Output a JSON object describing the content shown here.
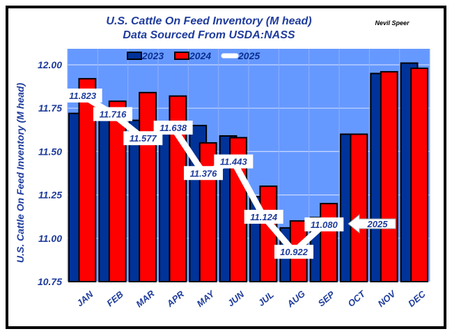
{
  "chart_data": {
    "type": "bar",
    "title": "U.S. Cattle On Feed Inventory (M head)",
    "subtitle": "Data Sourced From USDA:NASS",
    "author": "Nevil Speer",
    "xlabel": "",
    "ylabel": "U.S. Cattle On Feed Inventory (M head)",
    "ylim": [
      10.75,
      12.0
    ],
    "yticks": [
      "12.00",
      "11.75",
      "11.50",
      "11.25",
      "11.00",
      "10.75"
    ],
    "ytick_values": [
      12.0,
      11.75,
      11.5,
      11.25,
      11.0,
      10.75
    ],
    "grid": true,
    "legend_position": "top-center",
    "categories": [
      "JAN",
      "FEB",
      "MAR",
      "APR",
      "MAY",
      "JUN",
      "JUL",
      "AUG",
      "SEP",
      "OCT",
      "NOV",
      "DEC"
    ],
    "series": [
      {
        "name": "2023",
        "kind": "bar",
        "color": "#003399",
        "values": [
          11.72,
          11.72,
          11.68,
          11.64,
          11.65,
          11.59,
          11.24,
          11.06,
          11.12,
          11.6,
          11.95,
          12.01
        ]
      },
      {
        "name": "2024",
        "kind": "bar",
        "color": "#ff0000",
        "values": [
          11.92,
          11.79,
          11.84,
          11.82,
          11.55,
          11.58,
          11.3,
          11.1,
          11.2,
          11.6,
          11.96,
          11.98
        ]
      },
      {
        "name": "2025",
        "kind": "line",
        "color": "#ffffff",
        "values": [
          11.823,
          11.716,
          11.577,
          11.638,
          11.376,
          11.443,
          11.124,
          10.922,
          11.08,
          null,
          null,
          null
        ],
        "labels": [
          "11.823",
          "11.716",
          "11.577",
          "11.638",
          "11.376",
          "11.443",
          "11.124",
          "10.922",
          "11.080"
        ]
      }
    ],
    "annotations": [
      {
        "text": "2025",
        "type": "arrow-callout",
        "points_to": "SEP"
      }
    ],
    "plot_bg": "#6699ff"
  }
}
